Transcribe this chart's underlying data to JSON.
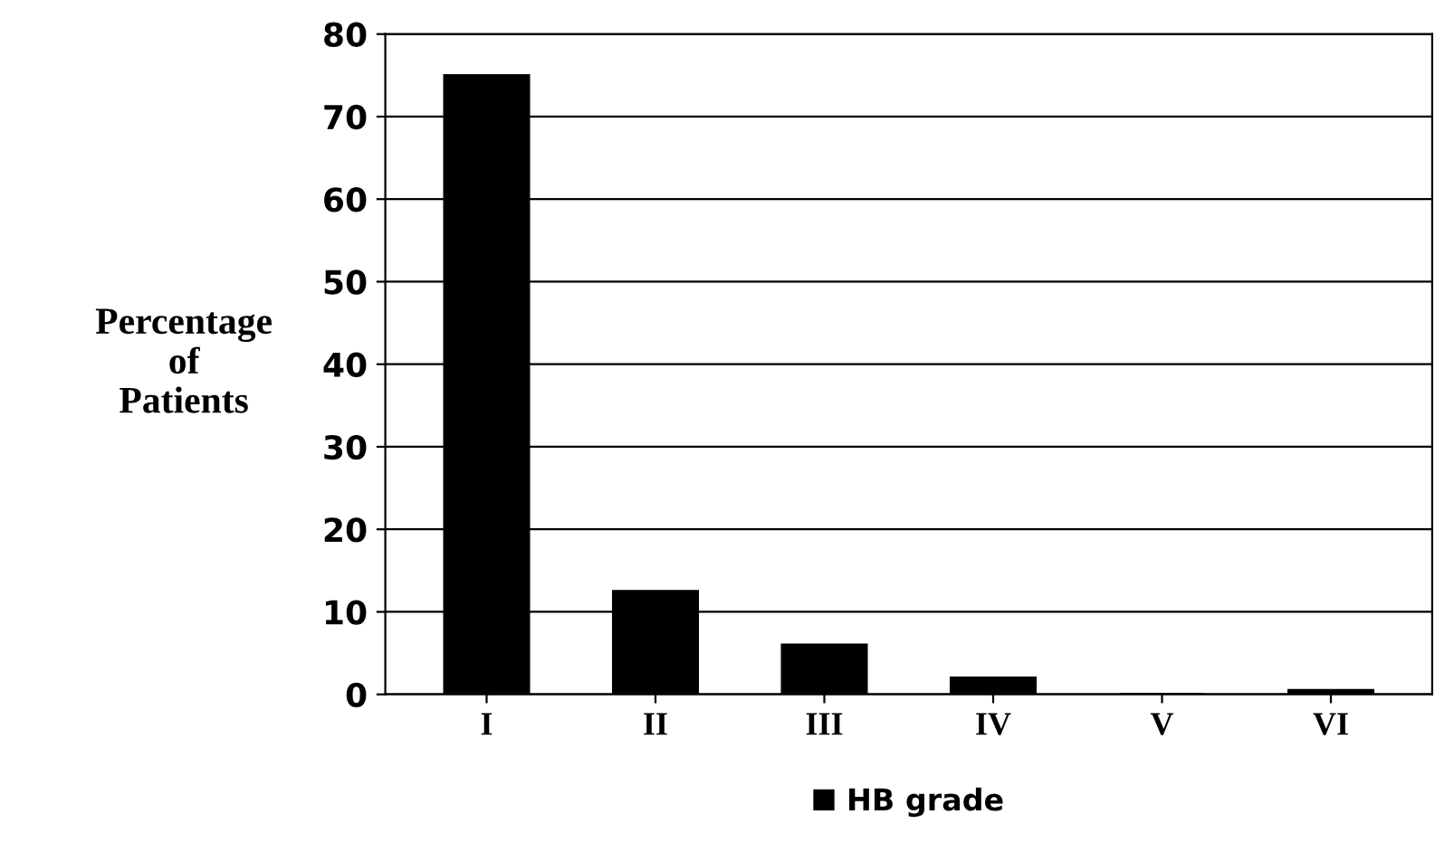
{
  "chart_data": {
    "type": "bar",
    "ylabel": "Percentage\nof\nPatients",
    "categories": [
      "I",
      "II",
      "III",
      "IV",
      "V",
      "VI"
    ],
    "series": [
      {
        "name": "HB grade",
        "color": "#000000",
        "values": [
          75,
          12.5,
          6,
          2,
          0,
          0.5
        ]
      }
    ],
    "ylim": [
      0,
      80
    ],
    "yticks": [
      0,
      10,
      20,
      30,
      40,
      50,
      60,
      70,
      80
    ],
    "grid": "y",
    "legend": "bottom"
  }
}
